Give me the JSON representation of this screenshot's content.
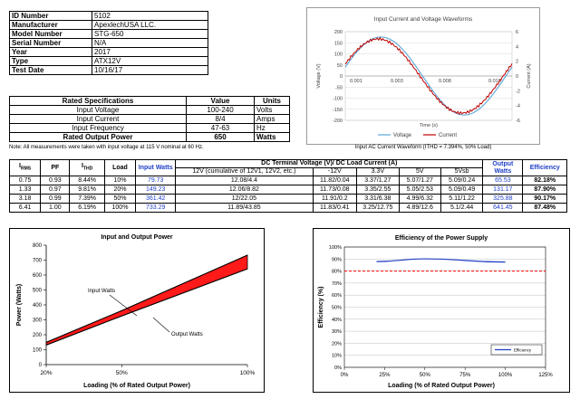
{
  "info": {
    "rows": [
      {
        "key": "ID Number",
        "value": "5102"
      },
      {
        "key": "Manufacturer",
        "value": "ApexlechUSA LLC."
      },
      {
        "key": "Model Number",
        "value": "STG-650"
      },
      {
        "key": "Serial Number",
        "value": "N/A"
      },
      {
        "key": "Year",
        "value": "2017"
      },
      {
        "key": "Type",
        "value": "ATX12V"
      },
      {
        "key": "Test Date",
        "value": "10/16/17"
      }
    ]
  },
  "rated": {
    "headers": [
      "Rated Specifications",
      "Value",
      "Units"
    ],
    "rows": [
      {
        "name": "Input Voltage",
        "value": "100-240",
        "unit": "Volts"
      },
      {
        "name": "Input Current",
        "value": "8/4",
        "unit": "Amps"
      },
      {
        "name": "Input Frequency",
        "value": "47-63",
        "unit": "Hz"
      },
      {
        "name": "Rated Output Power",
        "value": "650",
        "unit": "Watts"
      }
    ],
    "note": "Note: All measurements were taken with input voltage at 115 V nominal at 60 Hz."
  },
  "waveform": {
    "title": "Input Current and Voltage Waveforms",
    "ylabel_left": "Voltage (V)",
    "ylabel_right": "Current (A)",
    "xlabel": "Time (s)",
    "y_left_ticks": [
      "200",
      "150",
      "100",
      "50",
      "0",
      "-50",
      "-100",
      "-150",
      "-200"
    ],
    "y_right_ticks": [
      "6",
      "4",
      "2",
      "0",
      "-2",
      "-4",
      "-6"
    ],
    "x_ticks": [
      "0.001",
      "0.003",
      "0.008",
      "0.013"
    ],
    "legend": [
      "Voltage",
      "Current"
    ],
    "caption": "Input AC Current Waveform (ITHD = 7.394%, 50% Load)",
    "voltage_color": "#5aa7d8",
    "current_color": "#c00000"
  },
  "measurements": {
    "header_top": "DC Terminal Voltage (V)/ DC Load Current (A)",
    "h_irms": "I",
    "h_irms_sub": "RMS",
    "h_pf": "PF",
    "h_ithd": "I",
    "h_ithd_sub": "THD",
    "h_load": "Load",
    "h_input": "Input Watts",
    "h_output": "Output Watts",
    "h_eff": "Efficiency",
    "sub_headers": [
      "12V (cumulative of 12V1, 12V2, etc.)",
      "-12V",
      "3.3V",
      "5V",
      "5Vsb"
    ],
    "rows": [
      {
        "irms": "0.75",
        "pf": "0.93",
        "ithd": "8.44%",
        "load": "10%",
        "input": "79.73",
        "v12": "12.08/4.4",
        "vn12": "11.82/0.04",
        "v33": "3.37/1.27",
        "v5": "5.07/1.27",
        "v5sb": "5.09/0.24",
        "output": "65.53",
        "eff": "82.18%"
      },
      {
        "irms": "1.33",
        "pf": "0.97",
        "ithd": "9.81%",
        "load": "20%",
        "input": "149.23",
        "v12": "12.06/8.82",
        "vn12": "11.73/0.08",
        "v33": "3.35/2.55",
        "v5": "5.05/2.53",
        "v5sb": "5.09/0.49",
        "output": "131.17",
        "eff": "87.90%"
      },
      {
        "irms": "3.18",
        "pf": "0.99",
        "ithd": "7.39%",
        "load": "50%",
        "input": "361.42",
        "v12": "12/22.05",
        "vn12": "11.91/0.2",
        "v33": "3.31/6.38",
        "v5": "4.99/6.32",
        "v5sb": "5.11/1.22",
        "output": "325.88",
        "eff": "90.17%"
      },
      {
        "irms": "6.41",
        "pf": "1.00",
        "ithd": "6.19%",
        "load": "100%",
        "input": "733.29",
        "v12": "11.89/43.85",
        "vn12": "11.83/0.41",
        "v33": "3.25/12.75",
        "v5": "4.89/12.6",
        "v5sb": "5.1/2.44",
        "output": "641.45",
        "eff": "87.48%"
      }
    ]
  },
  "chart_data": [
    {
      "type": "area",
      "title": "Input and Output Power",
      "xlabel": "Loading (% of Rated Output Power)",
      "ylabel": "Power (Watts)",
      "categories": [
        "20%",
        "50%",
        "100%"
      ],
      "x": [
        20,
        50,
        100
      ],
      "xlim": [
        20,
        100
      ],
      "ylim": [
        0,
        800
      ],
      "y_ticks": [
        "0",
        "100",
        "200",
        "300",
        "400",
        "500",
        "600",
        "700",
        "800"
      ],
      "series": [
        {
          "name": "Input Watts",
          "values": [
            149.23,
            361.42,
            733.29
          ]
        },
        {
          "name": "Output Watts",
          "values": [
            131.17,
            325.88,
            641.45
          ]
        }
      ],
      "fill_color": "#ff1a1a",
      "grid": false
    },
    {
      "type": "line",
      "title": "Efficiency of the Power Supply",
      "xlabel": "Loading (% of Rated Output Power)",
      "ylabel": "Efficiency (%)",
      "x_ticks": [
        "0%",
        "25%",
        "50%",
        "75%",
        "100%",
        "125%"
      ],
      "y_ticks": [
        "0%",
        "10%",
        "20%",
        "30%",
        "40%",
        "50%",
        "60%",
        "70%",
        "80%",
        "90%",
        "100%"
      ],
      "xlim": [
        0,
        125
      ],
      "ylim": [
        0,
        100
      ],
      "series": [
        {
          "name": "Efficiency",
          "x": [
            20,
            50,
            100
          ],
          "values": [
            87.9,
            90.17,
            87.48
          ]
        }
      ],
      "reference_line": 80,
      "line_color": "#1f3fc7",
      "ref_color": "#ff0000",
      "grid": true,
      "legend_position": "bottom-right"
    }
  ]
}
